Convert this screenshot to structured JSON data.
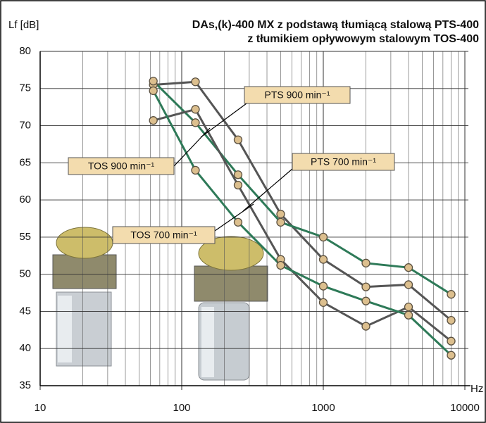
{
  "chart_data": {
    "type": "line",
    "title": [
      "DAs,(k)-400 MX z podstawą tłumiącą stalową PTS-400",
      "z tłumikiem opływowym stalowym TOS-400"
    ],
    "y_label": "Lf [dB]",
    "x_label": "Hz",
    "x": [
      63,
      125,
      250,
      500,
      1000,
      2000,
      4000,
      8000
    ],
    "series": [
      {
        "name": "PTS 900 min⁻¹",
        "color": "#555555",
        "values": [
          75.5,
          75.9,
          68.1,
          58.1,
          52,
          48.3,
          48.6,
          43.8
        ]
      },
      {
        "name": "TOS 900 min⁻¹",
        "color": "#2e7a58",
        "values": [
          76,
          70.4,
          63.4,
          57,
          55,
          51.5,
          50.9,
          47.3
        ]
      },
      {
        "name": "PTS 700 min⁻¹",
        "color": "#555555",
        "values": [
          70.7,
          72.2,
          62,
          52,
          46.2,
          43,
          45.6,
          41
        ]
      },
      {
        "name": "TOS 700 min⁻¹",
        "color": "#2e7a58",
        "values": [
          74.7,
          64,
          57,
          51.2,
          48.4,
          46.4,
          44.5,
          39.1
        ]
      }
    ],
    "marker_color": "#dcbf8e",
    "xscale": "log",
    "xlim": [
      10,
      10000
    ],
    "xticks": [
      10,
      100,
      1000,
      10000
    ],
    "xminorticks": [
      20,
      30,
      40,
      50,
      60,
      70,
      80,
      90,
      200,
      300,
      400,
      500,
      600,
      700,
      800,
      900,
      2000,
      3000,
      4000,
      5000,
      6000,
      7000,
      8000,
      9000
    ],
    "ylim": [
      35,
      80
    ],
    "yticks": [
      35,
      40,
      45,
      50,
      55,
      60,
      65,
      70,
      75,
      80
    ],
    "grid": true
  }
}
